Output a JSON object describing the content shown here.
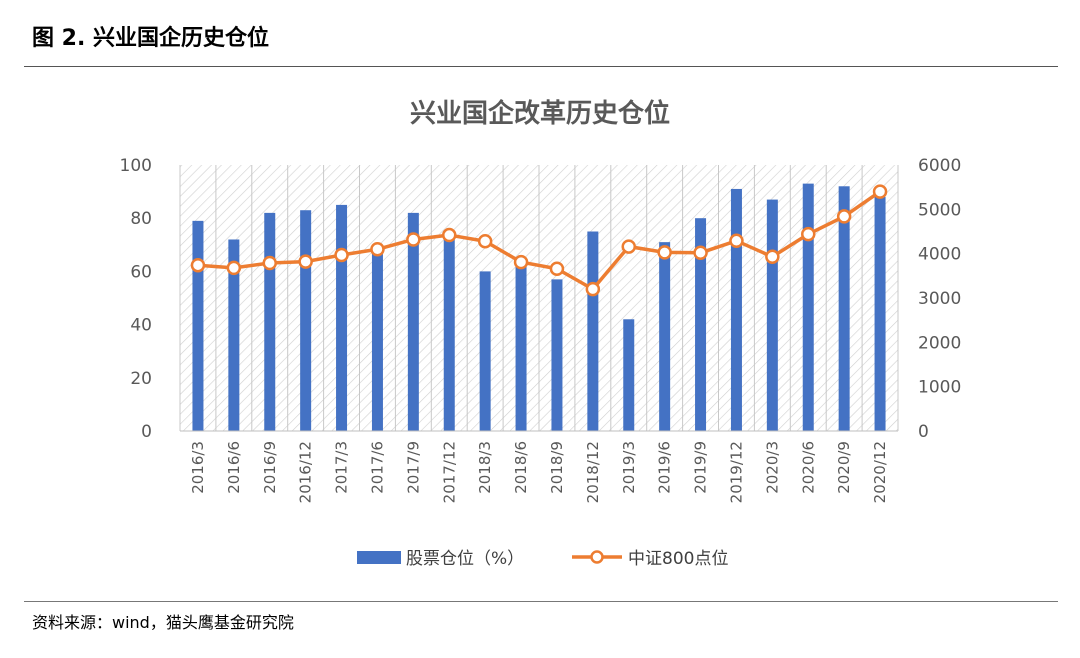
{
  "figure": {
    "label": "图 2. 兴业国企历史仓位",
    "source": "资料来源：wind，猫头鹰基金研究院"
  },
  "chart_data": {
    "type": "bar",
    "title": "兴业国企改革历史仓位",
    "categories": [
      "2016/3",
      "2016/6",
      "2016/9",
      "2016/12",
      "2017/3",
      "2017/6",
      "2017/9",
      "2017/12",
      "2018/3",
      "2018/6",
      "2018/9",
      "2018/12",
      "2019/3",
      "2019/6",
      "2019/9",
      "2019/12",
      "2020/3",
      "2020/6",
      "2020/9",
      "2020/12"
    ],
    "series": [
      {
        "name": "股票仓位（%）",
        "type": "bar",
        "axis": "left",
        "color": "#4472C4",
        "values": [
          79,
          72,
          82,
          83,
          85,
          68,
          82,
          73,
          60,
          63,
          57,
          75,
          42,
          71,
          80,
          91,
          87,
          93,
          92,
          88
        ]
      },
      {
        "name": "中证800点位",
        "type": "line",
        "axis": "right",
        "color": "#ED7D31",
        "values": [
          3740,
          3680,
          3790,
          3820,
          3970,
          4100,
          4320,
          4420,
          4280,
          3810,
          3660,
          3200,
          4160,
          4030,
          4020,
          4290,
          3930,
          4440,
          4840,
          5400
        ]
      }
    ],
    "y_left": {
      "min": 0,
      "max": 100,
      "ticks": [
        0,
        20,
        40,
        60,
        80,
        100
      ]
    },
    "y_right": {
      "min": 0,
      "max": 6000,
      "ticks": [
        0,
        1000,
        2000,
        3000,
        4000,
        5000,
        6000
      ]
    },
    "grid": false,
    "plot_background": "hatched",
    "legend_position": "bottom"
  }
}
